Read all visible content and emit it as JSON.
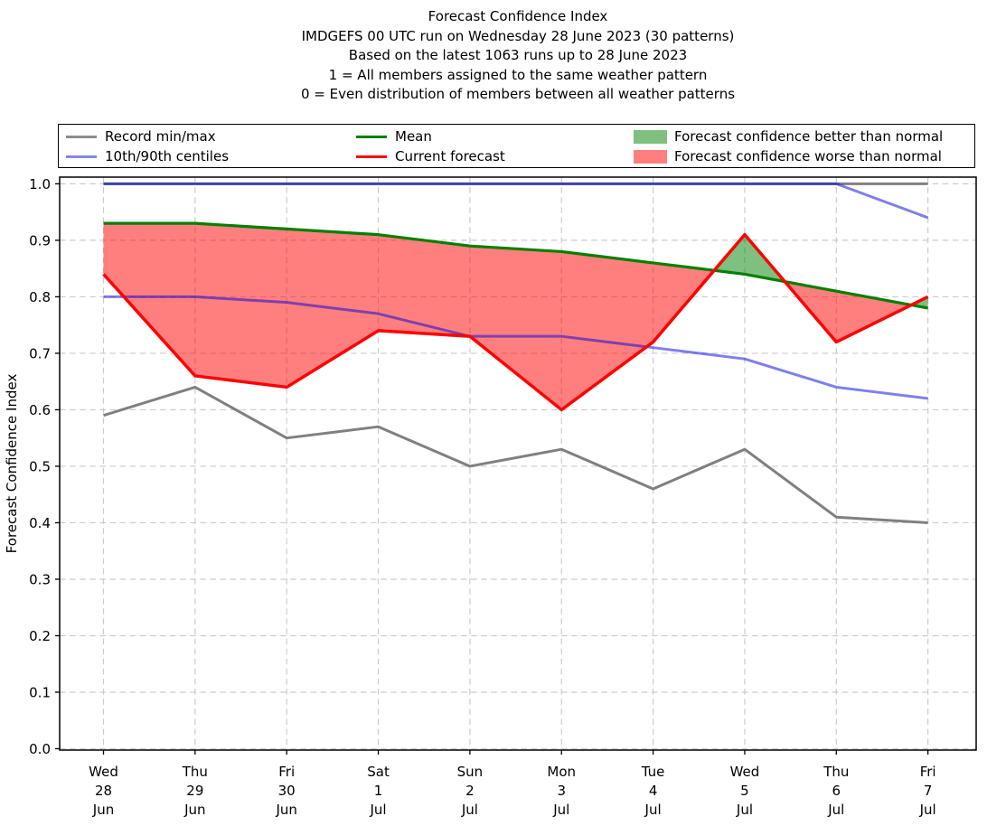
{
  "chart_data": {
    "type": "line",
    "title": "Forecast Confidence Index",
    "subtitle_lines": [
      "IMDGEFS 00 UTC run on Wednesday 28 June 2023 (30 patterns)",
      "Based on the latest 1063 runs up to 28 June 2023",
      "1 = All members assigned to the same weather pattern",
      "0 = Even distribution of members between all weather patterns"
    ],
    "ylabel": "Forecast Confidence Index",
    "xlabel": "",
    "ylim": [
      0.0,
      1.0
    ],
    "grid": true,
    "legend_position": "top",
    "y_ticks": [
      "0.0",
      "0.1",
      "0.2",
      "0.3",
      "0.4",
      "0.5",
      "0.6",
      "0.7",
      "0.8",
      "0.9",
      "1.0"
    ],
    "x_categories": [
      {
        "day": "Wed",
        "date": "28",
        "month": "Jun"
      },
      {
        "day": "Thu",
        "date": "29",
        "month": "Jun"
      },
      {
        "day": "Fri",
        "date": "30",
        "month": "Jun"
      },
      {
        "day": "Sat",
        "date": "1",
        "month": "Jul"
      },
      {
        "day": "Sun",
        "date": "2",
        "month": "Jul"
      },
      {
        "day": "Mon",
        "date": "3",
        "month": "Jul"
      },
      {
        "day": "Tue",
        "date": "4",
        "month": "Jul"
      },
      {
        "day": "Wed",
        "date": "5",
        "month": "Jul"
      },
      {
        "day": "Thu",
        "date": "6",
        "month": "Jul"
      },
      {
        "day": "Fri",
        "date": "7",
        "month": "Jul"
      }
    ],
    "series": [
      {
        "name": "Record max",
        "color": "#808080",
        "width": 3,
        "opacity": 1,
        "values": [
          1.0,
          1.0,
          1.0,
          1.0,
          1.0,
          1.0,
          1.0,
          1.0,
          1.0,
          1.0
        ]
      },
      {
        "name": "Record min",
        "color": "#808080",
        "width": 3,
        "opacity": 1,
        "values": [
          0.59,
          0.64,
          0.55,
          0.57,
          0.5,
          0.53,
          0.46,
          0.53,
          0.41,
          0.4
        ]
      },
      {
        "name": "90th centile",
        "color": "#0000dd",
        "width": 3,
        "opacity": 0.5,
        "values": [
          1.0,
          1.0,
          1.0,
          1.0,
          1.0,
          1.0,
          1.0,
          1.0,
          1.0,
          0.94
        ]
      },
      {
        "name": "10th centile",
        "color": "#0000dd",
        "width": 3,
        "opacity": 0.5,
        "values": [
          0.8,
          0.8,
          0.79,
          0.77,
          0.73,
          0.73,
          0.71,
          0.69,
          0.64,
          0.62
        ]
      },
      {
        "name": "Mean",
        "color": "#008000",
        "width": 3.2,
        "opacity": 1,
        "values": [
          0.93,
          0.93,
          0.92,
          0.91,
          0.89,
          0.88,
          0.86,
          0.84,
          0.81,
          0.78
        ]
      },
      {
        "name": "Current forecast",
        "color": "#ff0000",
        "width": 3.5,
        "opacity": 1,
        "values": [
          0.84,
          0.66,
          0.64,
          0.74,
          0.73,
          0.6,
          0.72,
          0.91,
          0.72,
          0.8
        ]
      }
    ],
    "fill_between": {
      "upper": "Mean",
      "lower": "Current forecast",
      "better_color": "#008000",
      "worse_color": "#ff0000",
      "opacity": 0.5
    }
  },
  "legend": {
    "entries": [
      {
        "label": "Record min/max",
        "type": "line",
        "color": "#8c8c8c"
      },
      {
        "label": "10th/90th centiles",
        "type": "line",
        "color": "#8585ef"
      },
      {
        "label": "Mean",
        "type": "line",
        "color": "#008000"
      },
      {
        "label": "Current forecast",
        "type": "line",
        "color": "#ff0000"
      },
      {
        "label": "Forecast confidence better than normal",
        "type": "patch",
        "color": "#7fbf7f"
      },
      {
        "label": "Forecast confidence worse than normal",
        "type": "patch",
        "color": "#ff7f7f"
      }
    ]
  }
}
